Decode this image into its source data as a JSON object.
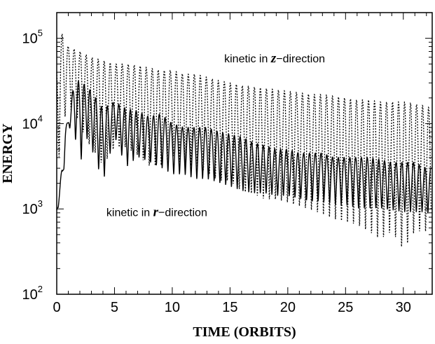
{
  "chart_data": {
    "type": "line",
    "xlabel": "TIME (ORBITS)",
    "ylabel": "ENERGY",
    "xlim": [
      0,
      32.5
    ],
    "ylim": [
      100,
      200000
    ],
    "yscale": "log",
    "x_ticks": [
      0,
      5,
      10,
      15,
      20,
      25,
      30
    ],
    "x_tick_labels": [
      "0",
      "5",
      "10",
      "15",
      "20",
      "25",
      "30"
    ],
    "y_ticks": [
      {
        "base": "10",
        "exp": "2",
        "value": 100
      },
      {
        "base": "10",
        "exp": "3",
        "value": 1000
      },
      {
        "base": "10",
        "exp": "4",
        "value": 10000
      },
      {
        "base": "10",
        "exp": "5",
        "value": 100000
      }
    ],
    "grid": false,
    "series": [
      {
        "style": "dotted",
        "x": [
          0,
          0.25,
          0.5,
          0.75,
          1,
          1.5,
          2,
          2.5,
          3,
          4,
          5,
          6,
          7,
          8,
          9,
          10,
          11,
          12,
          13,
          14,
          15,
          16,
          17,
          18,
          19,
          20,
          21,
          22,
          23,
          24,
          25,
          26,
          27,
          28,
          29,
          30,
          31,
          32,
          32.4
        ],
        "y_upper": [
          50000,
          130000,
          110000,
          90000,
          80000,
          75000,
          70000,
          65000,
          60000,
          55000,
          50000,
          50000,
          48000,
          45000,
          42000,
          42000,
          38000,
          38000,
          35000,
          32000,
          30000,
          28000,
          27000,
          26000,
          25000,
          24000,
          23000,
          22000,
          22000,
          21000,
          20000,
          19000,
          19000,
          18000,
          18000,
          18000,
          17000,
          16000,
          15000
        ],
        "y_lower": [
          1200,
          5000,
          8000,
          12000,
          15000,
          12000,
          10000,
          6000,
          5000,
          3000,
          5000,
          5000,
          4000,
          3000,
          3000,
          4000,
          3000,
          3000,
          2500,
          2000,
          2000,
          1500,
          1400,
          1200,
          1200,
          1100,
          1000,
          900,
          800,
          700,
          650,
          600,
          500,
          400,
          500,
          300,
          500,
          500,
          450
        ]
      },
      {
        "style": "solid",
        "x": [
          0,
          0.25,
          0.5,
          0.75,
          1,
          1.5,
          2,
          2.5,
          3,
          4,
          5,
          6,
          7,
          8,
          9,
          10,
          11,
          12,
          13,
          14,
          15,
          16,
          17,
          18,
          19,
          20,
          21,
          22,
          23,
          24,
          25,
          26,
          27,
          28,
          29,
          30,
          31,
          32,
          32.4
        ],
        "y_upper": [
          1000,
          1800,
          3500,
          9000,
          11000,
          30000,
          32000,
          28000,
          24000,
          15000,
          18000,
          15000,
          14000,
          12000,
          13000,
          10000,
          9000,
          9000,
          9000,
          8000,
          7500,
          7000,
          6000,
          5500,
          5000,
          5000,
          4500,
          4500,
          4500,
          4000,
          4000,
          4000,
          4000,
          3800,
          3500,
          3500,
          3500,
          3000,
          3000
        ],
        "y_lower": [
          900,
          1200,
          1800,
          5000,
          9000,
          8000,
          3000,
          7000,
          5000,
          2000,
          7000,
          3000,
          4000,
          3500,
          3000,
          2500,
          2500,
          2200,
          2200,
          2000,
          1800,
          1600,
          1500,
          1500,
          1400,
          1400,
          1300,
          1200,
          1200,
          1100,
          1100,
          1000,
          1000,
          1000,
          950,
          900,
          900,
          900,
          800
        ]
      }
    ],
    "annotations": [
      {
        "prefix": "kinetic in ",
        "var": "z",
        "suffix": "−direction",
        "x": 14.5,
        "y": 52000
      },
      {
        "prefix": "kinetic in ",
        "var": "r",
        "suffix": "−direction",
        "x": 4.3,
        "y": 820
      }
    ]
  }
}
